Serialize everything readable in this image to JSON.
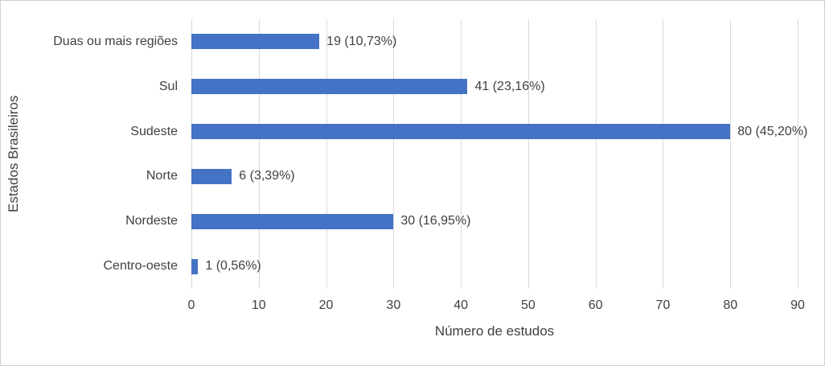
{
  "chart_data": {
    "type": "bar",
    "orientation": "horizontal",
    "title": "",
    "xlabel": "Número de estudos",
    "ylabel": "Estados Brasileiros",
    "categories": [
      "Duas ou mais regiões",
      "Sul",
      "Sudeste",
      "Norte",
      "Nordeste",
      "Centro-oeste"
    ],
    "values": [
      19,
      41,
      80,
      6,
      30,
      1
    ],
    "data_labels": [
      "19 (10,73%)",
      "41 (23,16%)",
      "80 (45,20%)",
      "6 (3,39%)",
      "30 (16,95%)",
      "1 (0,56%)"
    ],
    "xlim": [
      0,
      90
    ],
    "xticks": [
      "0",
      "10",
      "20",
      "30",
      "40",
      "50",
      "60",
      "70",
      "80",
      "90"
    ],
    "grid": "vertical",
    "legend": "none",
    "colors": {
      "bar": "#4472C4",
      "gridline": "#D9D9D9",
      "text": "#404040",
      "background": "#FFFFFF",
      "border": "#D0D0D0"
    }
  }
}
